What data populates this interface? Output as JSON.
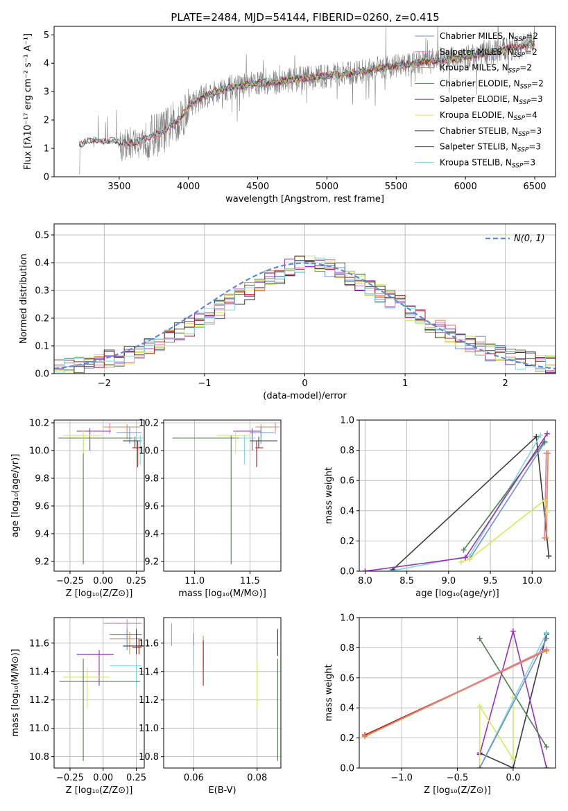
{
  "figure_title": "PLATE=2484, MJD=54144, FIBERID=0260, z=0.415",
  "palette": {
    "CM": "#6b8fd4",
    "SM": "#e07fbf",
    "KM": "#e08a45",
    "CE": "#4f7f4f",
    "SE": "#9a2fbf",
    "KE": "#d8e84f",
    "CS": "#3a3a3a",
    "SS": "#b01c1c",
    "KS": "#7fd6dc",
    "data": "#808080",
    "normal": "#5a8ad8",
    "grid": "#b0b0b0"
  },
  "chart_data": [
    {
      "id": "spectrum",
      "type": "line",
      "title": "PLATE=2484, MJD=54144, FIBERID=0260, z=0.415",
      "xlabel": "wavelength [Angstrom, rest frame]",
      "ylabel": "Flux [fλ10⁻¹⁷ erg cm⁻² s⁻¹ A⁻¹]",
      "xlim": [
        3030,
        6650
      ],
      "ylim": [
        0,
        5.3
      ],
      "xticks": [
        "3500",
        "4000",
        "4500",
        "5000",
        "5500",
        "6000",
        "6500"
      ],
      "xtick_values": [
        3500,
        4000,
        4500,
        5000,
        5500,
        6000,
        6500
      ],
      "yticks": [
        "0",
        "1",
        "2",
        "3",
        "4",
        "5"
      ],
      "ytick_values": [
        0,
        1,
        2,
        3,
        4,
        5
      ],
      "grid": false,
      "legend_position": "top-right",
      "continuum": {
        "x": [
          3210,
          3250,
          3300,
          3350,
          3400,
          3450,
          3500,
          3550,
          3600,
          3650,
          3700,
          3750,
          3800,
          3850,
          3900,
          3950,
          4000,
          4100,
          4200,
          4300,
          4400,
          4500,
          4600,
          4700,
          4800,
          4900,
          5000,
          5100,
          5200,
          5300,
          5400,
          5500,
          5600,
          5700,
          5800,
          5900,
          6000,
          6100,
          6200,
          6300,
          6400,
          6500
        ],
        "y": [
          1.1,
          1.2,
          1.25,
          1.25,
          1.2,
          1.25,
          1.2,
          1.15,
          1.2,
          1.25,
          1.35,
          1.45,
          1.55,
          1.7,
          1.9,
          2.1,
          2.5,
          2.8,
          3.0,
          3.15,
          3.2,
          3.3,
          3.3,
          3.4,
          3.45,
          3.5,
          3.55,
          3.6,
          3.65,
          3.75,
          3.85,
          3.9,
          3.95,
          4.05,
          4.1,
          4.15,
          4.2,
          4.3,
          4.4,
          4.5,
          4.6,
          4.7
        ]
      },
      "legend": [
        {
          "key": "CM",
          "label": "Chabrier MILES, N",
          "sub": "SSP",
          "count": "=2"
        },
        {
          "key": "SM",
          "label": "Salpeter MILES, N",
          "sub": "SSP",
          "count": "=2"
        },
        {
          "key": "KM",
          "label": "Kroupa MILES, N",
          "sub": "SSP",
          "count": "=2"
        },
        {
          "key": "CE",
          "label": "Chabrier ELODIE, N",
          "sub": "SSP",
          "count": "=2"
        },
        {
          "key": "SE",
          "label": "Salpeter ELODIE, N",
          "sub": "SSP",
          "count": "=3"
        },
        {
          "key": "KE",
          "label": "Kroupa ELODIE, N",
          "sub": "SSP",
          "count": "=4"
        },
        {
          "key": "CS",
          "label": "Chabrier STELIB, N",
          "sub": "SSP",
          "count": "=3"
        },
        {
          "key": "SS",
          "label": "Salpeter STELIB, N",
          "sub": "SSP",
          "count": "=3"
        },
        {
          "key": "KS",
          "label": "Kroupa STELIB, N",
          "sub": "SSP",
          "count": "=3"
        }
      ]
    },
    {
      "id": "residuals",
      "type": "histogram",
      "xlabel": "(data-model)/error",
      "ylabel": "Normed distribution",
      "xlim": [
        -2.5,
        2.5
      ],
      "ylim": [
        0,
        0.54
      ],
      "xticks": [
        "−2",
        "−1",
        "0",
        "1",
        "2"
      ],
      "xtick_values": [
        -2,
        -1,
        0,
        1,
        2
      ],
      "yticks": [
        "0.0",
        "0.1",
        "0.2",
        "0.3",
        "0.4",
        "0.5"
      ],
      "ytick_values": [
        0,
        0.1,
        0.2,
        0.3,
        0.4,
        0.5
      ],
      "grid": true,
      "bins": [
        -2.5,
        2.5,
        50
      ],
      "base_values": [
        0.02,
        0.025,
        0.03,
        0.035,
        0.04,
        0.05,
        0.06,
        0.07,
        0.085,
        0.1,
        0.115,
        0.13,
        0.15,
        0.17,
        0.19,
        0.21,
        0.23,
        0.26,
        0.28,
        0.3,
        0.32,
        0.34,
        0.36,
        0.38,
        0.39,
        0.4,
        0.39,
        0.38,
        0.37,
        0.35,
        0.33,
        0.31,
        0.29,
        0.27,
        0.25,
        0.22,
        0.2,
        0.18,
        0.16,
        0.14,
        0.12,
        0.11,
        0.1,
        0.08,
        0.07,
        0.06,
        0.05,
        0.045,
        0.035,
        0.03
      ],
      "normal_curve": {
        "mean": 0,
        "sigma": 1
      },
      "legend_label": "N(0, 1)",
      "legend_position": "top-right"
    },
    {
      "id": "age_vs_Z",
      "type": "errorbar",
      "xlabel": "Z [log₁₀(Z/Z⊙)]",
      "ylabel": "age  [log₁₀(age/yr)]",
      "xlim": [
        -0.37,
        0.31
      ],
      "ylim": [
        9.13,
        10.22
      ],
      "xticks": [
        "−0.25",
        "0.00",
        "0.25"
      ],
      "xtick_values": [
        -0.25,
        0,
        0.25
      ],
      "yticks": [
        "9.2",
        "9.4",
        "9.6",
        "9.8",
        "10.0",
        "10.2"
      ],
      "ytick_values": [
        9.2,
        9.4,
        9.6,
        9.8,
        10.0,
        10.2
      ],
      "points": [
        {
          "key": "SM",
          "x": 0.05,
          "y": 10.17,
          "xl": 0,
          "xr": 0.25,
          "yl": 10.12,
          "yh": 10.2
        },
        {
          "key": "KM",
          "x": 0.18,
          "y": 10.17,
          "xl": 0,
          "xr": 0.28,
          "yl": 10.08,
          "yh": 10.19
        },
        {
          "key": "CM",
          "x": 0.2,
          "y": 10.13,
          "xl": 0.1,
          "xr": 0.29,
          "yl": 10.05,
          "yh": 10.17
        },
        {
          "key": "SE",
          "x": -0.1,
          "y": 10.14,
          "xl": -0.2,
          "xr": 0.06,
          "yl": 10.0,
          "yh": 10.16
        },
        {
          "key": "CE",
          "x": -0.15,
          "y": 10.09,
          "xl": -0.34,
          "xr": 0.29,
          "yl": 9.18,
          "yh": 10.11
        },
        {
          "key": "KE",
          "x": -0.15,
          "y": 10.11,
          "xl": -0.3,
          "xr": -0.01,
          "yl": 9.98,
          "yh": 10.15
        },
        {
          "key": "CS",
          "x": 0.24,
          "y": 10.07,
          "xl": 0.15,
          "xr": 0.29,
          "yl": 10.02,
          "yh": 10.1
        },
        {
          "key": "SS",
          "x": 0.26,
          "y": 10.02,
          "xl": 0.22,
          "xr": 0.29,
          "yl": 9.88,
          "yh": 10.07
        },
        {
          "key": "KS",
          "x": 0.28,
          "y": 10.09,
          "xl": 0.22,
          "xr": 0.3,
          "yl": 9.9,
          "yh": 10.11
        }
      ]
    },
    {
      "id": "age_vs_mass",
      "type": "errorbar",
      "xlabel": "mass [log₁₀(M/M⊙)]",
      "ylabel": "",
      "xlim": [
        10.72,
        11.78
      ],
      "ylim": [
        9.13,
        10.22
      ],
      "xticks": [
        "11.0",
        "11.5"
      ],
      "xtick_values": [
        11.0,
        11.5
      ],
      "yticks": [
        "9.2",
        "9.4",
        "9.6",
        "9.8",
        "10.0",
        "10.2"
      ],
      "ytick_values": [
        9.2,
        9.4,
        9.6,
        9.8,
        10.0,
        10.2
      ],
      "points": [
        {
          "key": "SM",
          "x": 11.73,
          "y": 10.17,
          "xl": 11.55,
          "xr": 11.77,
          "yl": 10.12,
          "yh": 10.2
        },
        {
          "key": "KM",
          "x": 11.6,
          "y": 10.17,
          "xl": 11.56,
          "xr": 11.75,
          "yl": 10.08,
          "yh": 10.19
        },
        {
          "key": "CM",
          "x": 11.6,
          "y": 10.13,
          "xl": 11.5,
          "xr": 11.72,
          "yl": 10.05,
          "yh": 10.17
        },
        {
          "key": "SE",
          "x": 11.52,
          "y": 10.14,
          "xl": 11.35,
          "xr": 11.6,
          "yl": 10.0,
          "yh": 10.16
        },
        {
          "key": "CE",
          "x": 11.33,
          "y": 10.09,
          "xl": 10.8,
          "xr": 11.5,
          "yl": 9.18,
          "yh": 10.11
        },
        {
          "key": "KE",
          "x": 11.37,
          "y": 10.11,
          "xl": 11.2,
          "xr": 11.5,
          "yl": 9.98,
          "yh": 10.15
        },
        {
          "key": "CS",
          "x": 11.58,
          "y": 10.07,
          "xl": 11.5,
          "xr": 11.75,
          "yl": 10.02,
          "yh": 10.1
        },
        {
          "key": "SS",
          "x": 11.56,
          "y": 10.02,
          "xl": 11.55,
          "xr": 11.62,
          "yl": 9.88,
          "yh": 10.07
        },
        {
          "key": "KS",
          "x": 11.45,
          "y": 10.09,
          "xl": 11.4,
          "xr": 11.55,
          "yl": 9.9,
          "yh": 10.11
        }
      ]
    },
    {
      "id": "mass_vs_Z",
      "type": "errorbar",
      "xlabel": "Z [log₁₀(Z/Z⊙)]",
      "ylabel": "mass [log₁₀(M/M⊙)]",
      "xlim": [
        -0.37,
        0.31
      ],
      "ylim": [
        10.72,
        11.78
      ],
      "xticks": [
        "−0.25",
        "0.00",
        "0.25"
      ],
      "xtick_values": [
        -0.25,
        0,
        0.25
      ],
      "yticks": [
        "10.8",
        "11.0",
        "11.2",
        "11.4",
        "11.6"
      ],
      "ytick_values": [
        10.8,
        11.0,
        11.2,
        11.4,
        11.6
      ],
      "points": [
        {
          "key": "SM",
          "x": 0.18,
          "y": 11.74,
          "xl": 0.0,
          "xr": 0.29,
          "yl": 11.6,
          "yh": 11.77
        },
        {
          "key": "CM",
          "x": 0.18,
          "y": 11.66,
          "xl": 0.05,
          "xr": 0.29,
          "yl": 11.55,
          "yh": 11.7
        },
        {
          "key": "KM",
          "x": 0.2,
          "y": 11.63,
          "xl": 0.05,
          "xr": 0.29,
          "yl": 11.52,
          "yh": 11.68
        },
        {
          "key": "CS",
          "x": 0.25,
          "y": 11.58,
          "xl": 0.15,
          "xr": 0.29,
          "yl": 11.52,
          "yh": 11.7
        },
        {
          "key": "SS",
          "x": 0.27,
          "y": 11.57,
          "xl": 0.22,
          "xr": 0.29,
          "yl": 11.52,
          "yh": 11.63
        },
        {
          "key": "SE",
          "x": -0.03,
          "y": 11.52,
          "xl": -0.2,
          "xr": 0.08,
          "yl": 11.3,
          "yh": 11.55
        },
        {
          "key": "KS",
          "x": 0.25,
          "y": 11.44,
          "xl": 0.05,
          "xr": 0.29,
          "yl": 11.3,
          "yh": 11.46
        },
        {
          "key": "KE",
          "x": -0.12,
          "y": 11.36,
          "xl": -0.3,
          "xr": 0.05,
          "yl": 11.14,
          "yh": 11.43
        },
        {
          "key": "CE",
          "x": -0.15,
          "y": 11.33,
          "xl": -0.33,
          "xr": 0.28,
          "yl": 10.77,
          "yh": 11.49
        }
      ]
    },
    {
      "id": "mass_vs_ebv",
      "type": "errorbar",
      "xlabel": "E(B-V)",
      "ylabel": "",
      "xlim": [
        0.0505,
        0.0875
      ],
      "ylim": [
        10.72,
        11.78
      ],
      "xticks": [
        "0.06",
        "0.08"
      ],
      "xtick_values": [
        0.06,
        0.08
      ],
      "yticks": [
        "10.8",
        "11.0",
        "11.2",
        "11.4",
        "11.6"
      ],
      "ytick_values": [
        10.8,
        11.0,
        11.2,
        11.4,
        11.6
      ],
      "points": [
        {
          "key": "SM",
          "x": 0.053,
          "y": 11.66,
          "yl": 11.58,
          "yh": 11.74
        },
        {
          "key": "CM",
          "x": 0.06,
          "y": 11.55,
          "yl": 11.45,
          "yh": 11.67
        },
        {
          "key": "KS",
          "x": 0.06,
          "y": 11.4,
          "yl": 11.3,
          "yh": 11.58
        },
        {
          "key": "KM",
          "x": 0.063,
          "y": 11.55,
          "yl": 11.42,
          "yh": 11.65
        },
        {
          "key": "SS",
          "x": 0.063,
          "y": 11.45,
          "yl": 11.3,
          "yh": 11.62
        },
        {
          "key": "KE",
          "x": 0.08,
          "y": 11.3,
          "yl": 11.14,
          "yh": 11.47
        },
        {
          "key": "CS",
          "x": 0.0865,
          "y": 11.6,
          "yl": 11.51,
          "yh": 11.7
        },
        {
          "key": "CE",
          "x": 0.0865,
          "y": 11.1,
          "yl": 10.77,
          "yh": 11.49
        }
      ]
    },
    {
      "id": "massweight_vs_age",
      "type": "line",
      "xlabel": "age  [log₁₀(age/yr)]",
      "ylabel": "mass weight",
      "xlim": [
        7.93,
        10.28
      ],
      "ylim": [
        0,
        1
      ],
      "xticks": [
        "8.0",
        "8.5",
        "9.0",
        "9.5",
        "10.0"
      ],
      "xtick_values": [
        8.0,
        8.5,
        9.0,
        9.5,
        10.0
      ],
      "yticks": [
        "0.0",
        "0.2",
        "0.4",
        "0.6",
        "0.8",
        "1.0"
      ],
      "ytick_values": [
        0,
        0.2,
        0.4,
        0.6,
        0.8,
        1.0
      ],
      "grid": true,
      "series": [
        {
          "key": "CS",
          "x": [
            8.33,
            10.05,
            10.2
          ],
          "y": [
            0.01,
            0.89,
            0.1
          ]
        },
        {
          "key": "SS",
          "x": [
            10.15,
            10.17
          ],
          "y": [
            0.22,
            0.78
          ]
        },
        {
          "key": "KS",
          "x": [
            8.3,
            9.25,
            10.1
          ],
          "y": [
            0.0,
            0.1,
            0.9
          ]
        },
        {
          "key": "CM",
          "x": [
            9.25,
            10.15
          ],
          "y": [
            0.08,
            0.85
          ]
        },
        {
          "key": "SM",
          "x": [
            10.15,
            10.17
          ],
          "y": [
            0.22,
            0.78
          ]
        },
        {
          "key": "KM",
          "x": [
            10.17,
            10.19
          ],
          "y": [
            0.22,
            0.78
          ]
        },
        {
          "key": "CE",
          "x": [
            9.18,
            10.15
          ],
          "y": [
            0.14,
            0.86
          ]
        },
        {
          "key": "KE",
          "x": [
            9.15,
            9.25,
            10.15,
            10.18
          ],
          "y": [
            0.06,
            0.08,
            0.47,
            0.39
          ]
        },
        {
          "key": "SE",
          "x": [
            8.0,
            9.2,
            10.18
          ],
          "y": [
            0.0,
            0.09,
            0.91
          ]
        }
      ]
    },
    {
      "id": "massweight_vs_Z",
      "type": "line",
      "xlabel": "Z [log₁₀(Z/Z⊙)]",
      "ylabel": "mass weight",
      "xlim": [
        -1.38,
        0.38
      ],
      "ylim": [
        0,
        1
      ],
      "xticks": [
        "−1.0",
        "−0.5",
        "0.0"
      ],
      "xtick_values": [
        -1.0,
        -0.5,
        0.0
      ],
      "yticks": [
        "0.0",
        "0.2",
        "0.4",
        "0.6",
        "0.8",
        "1.0"
      ],
      "ytick_values": [
        0,
        0.2,
        0.4,
        0.6,
        0.8,
        1.0
      ],
      "grid": true,
      "series": [
        {
          "key": "CS",
          "x": [
            -0.3,
            0.0,
            0.3
          ],
          "y": [
            0.1,
            0.0,
            0.89
          ]
        },
        {
          "key": "SE",
          "x": [
            -0.3,
            0.0,
            0.3
          ],
          "y": [
            0.09,
            0.91,
            0.0
          ]
        },
        {
          "key": "KE",
          "x": [
            -0.3,
            -0.3,
            0.0,
            0.0
          ],
          "y": [
            0.0,
            0.41,
            0.06,
            0.47
          ]
        },
        {
          "key": "CE",
          "x": [
            -0.3,
            0.3
          ],
          "y": [
            0.86,
            0.14
          ]
        },
        {
          "key": "KS",
          "x": [
            -0.3,
            0.3
          ],
          "y": [
            0.0,
            0.9
          ]
        },
        {
          "key": "CM",
          "x": [
            -0.3,
            0.3
          ],
          "y": [
            0.0,
            0.86
          ]
        },
        {
          "key": "SS",
          "x": [
            -1.33,
            0.3
          ],
          "y": [
            0.22,
            0.78
          ]
        },
        {
          "key": "SM",
          "x": [
            -1.33,
            0.3
          ],
          "y": [
            0.21,
            0.79
          ]
        },
        {
          "key": "KM",
          "x": [
            -1.33,
            0.3
          ],
          "y": [
            0.21,
            0.78
          ]
        }
      ]
    }
  ]
}
